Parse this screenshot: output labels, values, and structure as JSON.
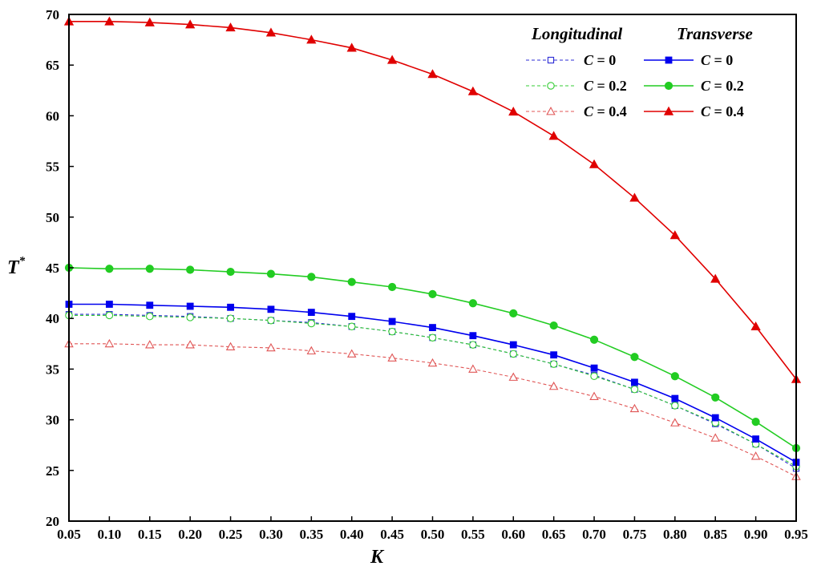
{
  "chart_data": {
    "type": "line",
    "xlabel": "K",
    "ylabel": "T",
    "ylabel_superscript": "*",
    "xlim": [
      0.05,
      0.95
    ],
    "ylim": [
      20,
      70
    ],
    "x_ticks": [
      "0.05",
      "0.10",
      "0.15",
      "0.20",
      "0.25",
      "0.30",
      "0.35",
      "0.40",
      "0.45",
      "0.50",
      "0.55",
      "0.60",
      "0.65",
      "0.70",
      "0.75",
      "0.80",
      "0.85",
      "0.90",
      "0.95"
    ],
    "y_ticks": [
      "20",
      "25",
      "30",
      "35",
      "40",
      "45",
      "50",
      "55",
      "60",
      "65",
      "70"
    ],
    "grid": false,
    "legend_placement": "top-right",
    "legend_headers": [
      "Longitudinal",
      "Transverse"
    ],
    "x": [
      0.05,
      0.1,
      0.15,
      0.2,
      0.25,
      0.3,
      0.35,
      0.4,
      0.45,
      0.5,
      0.55,
      0.6,
      0.65,
      0.7,
      0.75,
      0.8,
      0.85,
      0.9,
      0.95
    ],
    "series": [
      {
        "name": "C = 0",
        "label_var": "C",
        "label_val": "= 0",
        "group": "Longitudinal",
        "color": "#2b2bd6",
        "marker": "square",
        "filled": false,
        "dashed": true,
        "values": [
          40.4,
          40.4,
          40.3,
          40.2,
          40.0,
          39.8,
          39.6,
          39.2,
          38.7,
          38.1,
          37.4,
          36.5,
          35.5,
          34.4,
          33.0,
          31.4,
          29.6,
          27.6,
          25.2
        ]
      },
      {
        "name": "C = 0.2",
        "label_var": "C",
        "label_val": "= 0.2",
        "group": "Longitudinal",
        "color": "#33cc33",
        "marker": "circle",
        "filled": false,
        "dashed": true,
        "values": [
          40.3,
          40.3,
          40.2,
          40.1,
          40.0,
          39.8,
          39.5,
          39.2,
          38.7,
          38.1,
          37.4,
          36.5,
          35.5,
          34.3,
          33.0,
          31.4,
          29.7,
          27.6,
          25.4
        ]
      },
      {
        "name": "C = 0.4",
        "label_var": "C",
        "label_val": "= 0.4",
        "group": "Longitudinal",
        "color": "#e05555",
        "marker": "triangle",
        "filled": false,
        "dashed": true,
        "values": [
          37.5,
          37.5,
          37.4,
          37.4,
          37.2,
          37.1,
          36.8,
          36.5,
          36.1,
          35.6,
          35.0,
          34.2,
          33.3,
          32.3,
          31.1,
          29.7,
          28.2,
          26.4,
          24.4
        ]
      },
      {
        "name": "C = 0",
        "label_var": "C",
        "label_val": "= 0",
        "group": "Transverse",
        "color": "#0000ee",
        "marker": "square",
        "filled": true,
        "dashed": false,
        "values": [
          41.4,
          41.4,
          41.3,
          41.2,
          41.1,
          40.9,
          40.6,
          40.2,
          39.7,
          39.1,
          38.3,
          37.4,
          36.4,
          35.1,
          33.7,
          32.1,
          30.2,
          28.1,
          25.8
        ]
      },
      {
        "name": "C = 0.2",
        "label_var": "C",
        "label_val": "= 0.2",
        "group": "Transverse",
        "color": "#22cc22",
        "marker": "circle",
        "filled": true,
        "dashed": false,
        "values": [
          45.0,
          44.9,
          44.9,
          44.8,
          44.6,
          44.4,
          44.1,
          43.6,
          43.1,
          42.4,
          41.5,
          40.5,
          39.3,
          37.9,
          36.2,
          34.3,
          32.2,
          29.8,
          27.2
        ]
      },
      {
        "name": "C = 0.4",
        "label_var": "C",
        "label_val": "= 0.4",
        "group": "Transverse",
        "color": "#e00000",
        "marker": "triangle",
        "filled": true,
        "dashed": false,
        "values": [
          69.3,
          69.3,
          69.2,
          69.0,
          68.7,
          68.2,
          67.5,
          66.7,
          65.5,
          64.1,
          62.4,
          60.4,
          58.0,
          55.2,
          51.9,
          48.2,
          43.9,
          39.2,
          34.0
        ]
      }
    ]
  }
}
